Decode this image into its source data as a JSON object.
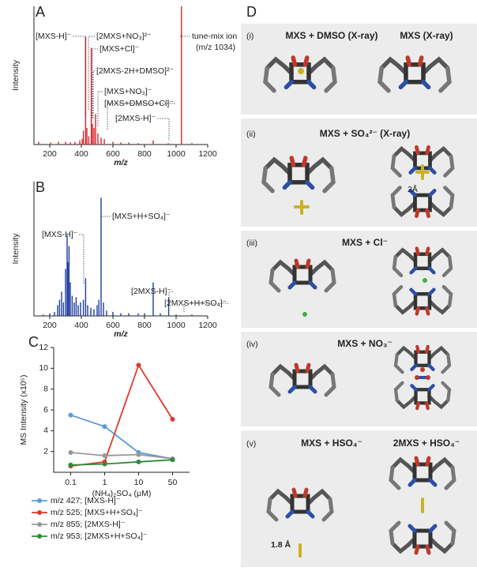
{
  "chart_data": [
    {
      "type": "stem",
      "panel": "A",
      "ylabel": "Intensity",
      "xlabel": "m/z",
      "color": "#d9232a",
      "x": [
        130,
        205,
        255,
        300,
        330,
        360,
        390,
        405,
        413,
        427,
        435,
        447,
        463,
        470,
        480,
        490,
        505,
        525,
        545,
        600,
        650,
        700,
        760,
        855,
        950,
        1034,
        1100
      ],
      "values": [
        2,
        1.5,
        2,
        2,
        1.5,
        2,
        3,
        4,
        10,
        78,
        12,
        6,
        70,
        15,
        12,
        22,
        8,
        5,
        4,
        2,
        1.5,
        1.5,
        1,
        3,
        1,
        100,
        1
      ],
      "xlim": [
        100,
        1200
      ],
      "xticks": [
        200,
        400,
        600,
        800,
        1000,
        1200
      ],
      "ylim": [
        0,
        100
      ],
      "annotations": [
        "[MXS-H]⁻",
        "[2MXS+NO₃]²⁻",
        "[MXS+Cl]⁻",
        "[2MXS-2H+DMSO]²⁻",
        "[MXS+NO₃]⁻",
        "[MXS+DMSO+Cl]⁻",
        "[2MXS-H]⁻",
        "tune-mix ion",
        "(m/z 1034)"
      ]
    },
    {
      "type": "stem",
      "panel": "B",
      "ylabel": "Intensity",
      "xlabel": "m/z",
      "color": "#1f3c9c",
      "x": [
        160,
        200,
        230,
        250,
        262,
        275,
        287,
        300,
        310,
        315,
        322,
        330,
        342,
        355,
        367,
        380,
        395,
        413,
        427,
        440,
        460,
        480,
        500,
        511,
        525,
        540,
        560,
        600,
        650,
        700,
        760,
        800,
        855,
        900,
        953,
        1000,
        1100
      ],
      "values": [
        1,
        2,
        3,
        8,
        12,
        18,
        10,
        35,
        60,
        40,
        52,
        25,
        15,
        10,
        14,
        8,
        10,
        12,
        28,
        8,
        6,
        5,
        8,
        12,
        88,
        10,
        4,
        3,
        2,
        2,
        2,
        2,
        25,
        2,
        14,
        1,
        1
      ],
      "xlim": [
        100,
        1200
      ],
      "xticks": [
        200,
        400,
        600,
        800,
        1000,
        1200
      ],
      "ylim": [
        0,
        100
      ],
      "annotations": [
        "[MXS+H+SO₄]⁻",
        "[MXS-H]⁻",
        "[2MXS-H]⁻",
        "[2MXS+H+SO₄]⁻"
      ]
    },
    {
      "type": "line",
      "panel": "C",
      "ylabel": "MS Intensity (x10⁵)",
      "xlabel": "(NH₄)₂SO₄ (μM)",
      "categories": [
        "0.1",
        "1",
        "10",
        "50"
      ],
      "ylim": [
        0,
        12
      ],
      "yticks": [
        2,
        4,
        6,
        8,
        10,
        12
      ],
      "series": [
        {
          "name": "m/z 427; [MXS-H]⁻",
          "color": "#5b9bd5",
          "values": [
            5.5,
            4.4,
            1.9,
            1.3
          ]
        },
        {
          "name": "m/z 525; [MXS+H+SO₄]⁻",
          "color": "#e0392b",
          "values": [
            0.6,
            1.0,
            10.3,
            5.1
          ]
        },
        {
          "name": "m/z 855; [2MXS-H]⁻",
          "color": "#999999",
          "values": [
            1.9,
            1.6,
            1.7,
            1.3
          ]
        },
        {
          "name": "m/z 953; [2MXS+H+SO₄]⁻",
          "color": "#2e8b3e",
          "values": [
            0.7,
            0.8,
            1.0,
            1.2
          ]
        }
      ]
    }
  ],
  "panel_d": {
    "label": "D",
    "rows": [
      {
        "label": "(i)",
        "titles": [
          "MXS + DMSO (X-ray)",
          "MXS (X-ray)"
        ]
      },
      {
        "label": "(ii)",
        "titles": [
          "MXS + SO₄²⁻ (X-ray)"
        ]
      },
      {
        "label": "(iii)",
        "titles": [
          "MXS + Cl⁻"
        ]
      },
      {
        "label": "(iv)",
        "titles": [
          "MXS + NO₃⁻"
        ]
      },
      {
        "label": "(v)",
        "titles": [
          "MXS + HSO₄⁻",
          "2MXS + HSO₄⁻"
        ]
      }
    ],
    "distances": [
      "2Å",
      "1.8 Å"
    ]
  }
}
